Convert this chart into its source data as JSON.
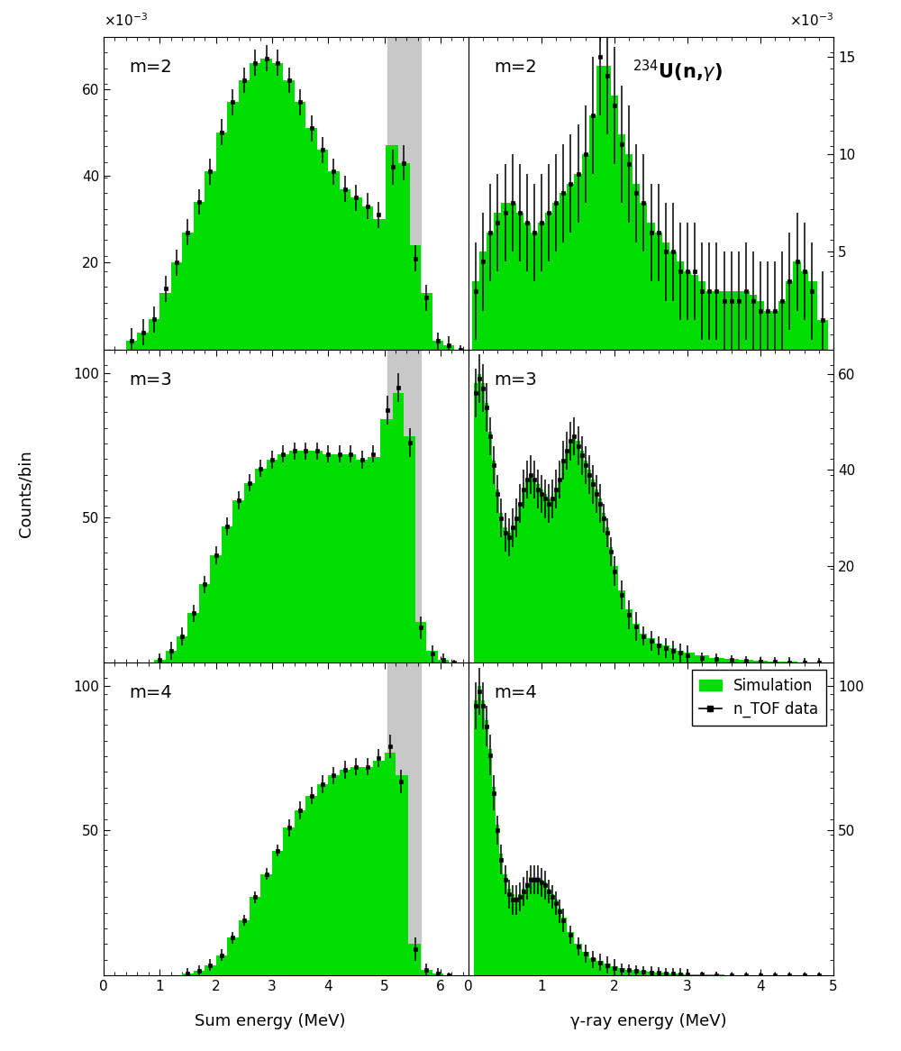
{
  "xlabel_left": "Sum energy (MeV)",
  "xlabel_right": "γ-ray energy (MeV)",
  "ylabel": "Counts/bin",
  "sim_color": "#00dd00",
  "data_color": "#000000",
  "gray_color": "#c8c8c8",
  "bg_color": "#ffffff",
  "panels": [
    {
      "row": 0,
      "col": 0,
      "label": "m=2",
      "side": "left",
      "xlim": [
        0,
        6.5
      ],
      "ylim": [
        0,
        72
      ],
      "yticks": [
        20,
        40,
        60
      ],
      "scale_exp": -3,
      "gray_region": [
        5.05,
        5.65
      ],
      "sim_x": [
        0.5,
        0.7,
        0.9,
        1.1,
        1.3,
        1.5,
        1.7,
        1.9,
        2.1,
        2.3,
        2.5,
        2.7,
        2.9,
        3.1,
        3.3,
        3.5,
        3.7,
        3.9,
        4.1,
        4.3,
        4.5,
        4.7,
        4.9,
        5.15,
        5.35,
        5.55,
        5.75,
        5.95,
        6.15,
        6.35
      ],
      "sim_y": [
        2,
        4,
        7,
        13,
        20,
        27,
        34,
        41,
        50,
        57,
        62,
        66,
        67,
        66,
        62,
        57,
        51,
        46,
        41,
        37,
        35,
        33,
        30,
        47,
        43,
        24,
        13,
        2,
        1,
        0
      ],
      "data_y": [
        2,
        4,
        7,
        14,
        20,
        27,
        34,
        41,
        50,
        57,
        62,
        66,
        67,
        66,
        62,
        57,
        51,
        46,
        41,
        37,
        35,
        33,
        31,
        42,
        43,
        21,
        12,
        2,
        1,
        0
      ],
      "data_err": [
        3,
        3,
        3,
        3,
        3,
        3,
        3,
        3,
        3,
        3,
        3,
        3,
        3,
        3,
        3,
        3,
        3,
        3,
        3,
        3,
        3,
        3,
        3,
        4,
        4,
        3,
        3,
        2,
        2,
        1
      ]
    },
    {
      "row": 0,
      "col": 1,
      "label": "m=2",
      "side": "right",
      "xlim": [
        0,
        5.0
      ],
      "ylim": [
        0,
        16
      ],
      "yticks": [
        5,
        10,
        15
      ],
      "scale_exp": -3,
      "gray_region": null,
      "isotope_label": true,
      "sim_x": [
        0.1,
        0.2,
        0.3,
        0.4,
        0.5,
        0.6,
        0.7,
        0.8,
        0.9,
        1.0,
        1.1,
        1.2,
        1.3,
        1.4,
        1.5,
        1.6,
        1.7,
        1.8,
        1.9,
        2.0,
        2.1,
        2.2,
        2.3,
        2.4,
        2.5,
        2.6,
        2.7,
        2.8,
        2.9,
        3.0,
        3.1,
        3.2,
        3.3,
        3.4,
        3.5,
        3.6,
        3.7,
        3.8,
        3.9,
        4.0,
        4.1,
        4.2,
        4.3,
        4.4,
        4.5,
        4.6,
        4.7,
        4.85
      ],
      "sim_y": [
        3.5,
        5,
        6,
        7,
        7.5,
        7.5,
        7,
        6.5,
        6,
        6.5,
        7,
        7.5,
        8,
        8.5,
        9,
        10,
        12,
        14.5,
        14.5,
        13,
        11,
        10,
        8.5,
        7.5,
        6.5,
        6,
        5.5,
        5,
        4.5,
        4,
        3.8,
        3.5,
        3,
        3,
        3,
        3,
        3,
        3,
        2.8,
        2.5,
        2,
        2,
        2.5,
        3.5,
        4.5,
        4,
        3.5,
        1.5
      ],
      "data_y": [
        3,
        4.5,
        6,
        6.5,
        7,
        7.5,
        7,
        6.5,
        6,
        6.5,
        7,
        7.5,
        8,
        8.5,
        9,
        10,
        12,
        15,
        14,
        12.5,
        10.5,
        9.5,
        8,
        7.5,
        6,
        6,
        5,
        5,
        4,
        4,
        4,
        3,
        3,
        3,
        2.5,
        2.5,
        2.5,
        3,
        2.5,
        2,
        2,
        2,
        2.5,
        3.5,
        4.5,
        4,
        3,
        1.5
      ],
      "data_err": [
        2.5,
        2.5,
        2.5,
        2.5,
        2.5,
        2.5,
        2.5,
        2.5,
        2.5,
        2.5,
        2.5,
        2.5,
        2.5,
        2.5,
        2.5,
        2.5,
        3,
        3,
        3,
        3,
        3,
        3,
        2.5,
        2.5,
        2.5,
        2.5,
        2.5,
        2.5,
        2.5,
        2.5,
        2.5,
        2.5,
        2.5,
        2.5,
        2.5,
        2.5,
        2.5,
        2.5,
        2.5,
        2.5,
        2.5,
        2.5,
        2.5,
        2.5,
        2.5,
        2.5,
        2.5,
        2.5
      ]
    },
    {
      "row": 1,
      "col": 0,
      "label": "m=3",
      "side": "left",
      "xlim": [
        0,
        6.5
      ],
      "ylim": [
        0,
        108
      ],
      "yticks": [
        50,
        100
      ],
      "scale_exp": null,
      "gray_region": [
        5.05,
        5.65
      ],
      "sim_x": [
        1.0,
        1.2,
        1.4,
        1.6,
        1.8,
        2.0,
        2.2,
        2.4,
        2.6,
        2.8,
        3.0,
        3.2,
        3.4,
        3.6,
        3.8,
        4.0,
        4.2,
        4.4,
        4.6,
        4.8,
        5.05,
        5.25,
        5.45,
        5.65,
        5.85,
        6.05,
        6.25
      ],
      "sim_y": [
        1,
        4,
        9,
        17,
        27,
        37,
        47,
        56,
        62,
        67,
        70,
        72,
        73,
        73,
        73,
        72,
        72,
        72,
        70,
        71,
        84,
        93,
        78,
        14,
        4,
        1,
        0
      ],
      "data_y": [
        1,
        4,
        9,
        17,
        27,
        37,
        47,
        56,
        62,
        67,
        70,
        72,
        73,
        73,
        73,
        72,
        72,
        72,
        70,
        72,
        87,
        95,
        76,
        12,
        3,
        1,
        0
      ],
      "data_err": [
        2,
        3,
        3,
        3,
        3,
        3,
        3,
        3,
        3,
        3,
        3,
        3,
        3,
        3,
        3,
        3,
        3,
        3,
        3,
        3,
        5,
        5,
        5,
        4,
        3,
        2,
        1
      ]
    },
    {
      "row": 1,
      "col": 1,
      "label": "m=3",
      "side": "right",
      "xlim": [
        0,
        5.0
      ],
      "ylim": [
        0,
        65
      ],
      "yticks": [
        20,
        40,
        60
      ],
      "scale_exp": null,
      "gray_region": null,
      "sim_x": [
        0.1,
        0.15,
        0.2,
        0.25,
        0.3,
        0.35,
        0.4,
        0.45,
        0.5,
        0.55,
        0.6,
        0.65,
        0.7,
        0.75,
        0.8,
        0.85,
        0.9,
        0.95,
        1.0,
        1.05,
        1.1,
        1.15,
        1.2,
        1.25,
        1.3,
        1.35,
        1.4,
        1.45,
        1.5,
        1.55,
        1.6,
        1.65,
        1.7,
        1.75,
        1.8,
        1.85,
        1.9,
        1.95,
        2.0,
        2.1,
        2.2,
        2.3,
        2.4,
        2.5,
        2.6,
        2.7,
        2.8,
        2.9,
        3.0,
        3.2,
        3.4,
        3.6,
        3.8,
        4.0,
        4.2,
        4.4,
        4.6,
        4.8
      ],
      "sim_y": [
        58,
        60,
        58,
        54,
        48,
        42,
        36,
        31,
        28,
        27,
        28,
        30,
        33,
        36,
        38,
        39,
        38,
        37,
        36,
        35,
        34,
        34,
        36,
        38,
        42,
        44,
        46,
        47,
        46,
        44,
        42,
        40,
        38,
        36,
        34,
        31,
        28,
        24,
        20,
        15,
        11,
        8,
        6,
        5,
        4,
        3.5,
        3,
        2.5,
        2,
        1.5,
        1,
        0.8,
        0.5,
        0.3,
        0.2,
        0.1,
        0.05,
        0.02
      ],
      "data_y": [
        56,
        59,
        57,
        53,
        47,
        41,
        35,
        30,
        27,
        26,
        28,
        30,
        33,
        36,
        38,
        39,
        38,
        36,
        35,
        34,
        33,
        34,
        36,
        38,
        42,
        44,
        46,
        47,
        45,
        43,
        41,
        39,
        37,
        35,
        33,
        30,
        27,
        23,
        19,
        14,
        10,
        7.5,
        5.5,
        4.5,
        3.5,
        3,
        2.5,
        2,
        1.5,
        1,
        0.8,
        0.5,
        0.3,
        0.2,
        0.1,
        0.05,
        0.02,
        0.01
      ],
      "data_err": [
        5,
        5,
        5,
        5,
        4,
        4,
        4,
        4,
        4,
        4,
        4,
        4,
        4,
        4,
        4,
        4,
        4,
        4,
        4,
        4,
        4,
        4,
        4,
        4,
        4,
        4,
        4,
        4,
        4,
        4,
        4,
        4,
        4,
        4,
        4,
        3,
        3,
        3,
        3,
        3,
        3,
        3,
        2,
        2,
        2,
        2,
        2,
        2,
        2,
        1,
        1,
        1,
        1,
        1,
        1,
        1,
        1,
        1
      ]
    },
    {
      "row": 2,
      "col": 0,
      "label": "m=4",
      "side": "left",
      "xlim": [
        0,
        6.5
      ],
      "ylim": [
        0,
        108
      ],
      "yticks": [
        50,
        100
      ],
      "scale_exp": null,
      "gray_region": [
        5.05,
        5.65
      ],
      "sim_x": [
        1.5,
        1.7,
        1.9,
        2.1,
        2.3,
        2.5,
        2.7,
        2.9,
        3.1,
        3.3,
        3.5,
        3.7,
        3.9,
        4.1,
        4.3,
        4.5,
        4.7,
        4.9,
        5.1,
        5.3,
        5.55,
        5.75,
        5.95,
        6.15
      ],
      "sim_y": [
        0.5,
        1.5,
        3.5,
        7,
        13,
        19,
        27,
        35,
        43,
        51,
        57,
        62,
        66,
        69,
        71,
        72,
        72,
        74,
        77,
        69,
        11,
        2,
        0.5,
        0
      ],
      "data_y": [
        0.5,
        1.5,
        3.5,
        7,
        13,
        19,
        27,
        35,
        43,
        51,
        57,
        62,
        66,
        69,
        71,
        72,
        72,
        75,
        79,
        67,
        9,
        2,
        0.5,
        0
      ],
      "data_err": [
        2,
        2,
        2,
        2,
        2,
        2,
        2,
        2,
        2,
        3,
        3,
        3,
        3,
        3,
        3,
        3,
        3,
        3,
        4,
        4,
        4,
        2,
        2,
        1
      ]
    },
    {
      "row": 2,
      "col": 1,
      "label": "m=4",
      "side": "right",
      "xlim": [
        0,
        5.0
      ],
      "ylim": [
        0,
        108
      ],
      "yticks": [
        50,
        100
      ],
      "scale_exp": null,
      "gray_region": null,
      "legend": true,
      "sim_x": [
        0.1,
        0.15,
        0.2,
        0.25,
        0.3,
        0.35,
        0.4,
        0.45,
        0.5,
        0.55,
        0.6,
        0.65,
        0.7,
        0.75,
        0.8,
        0.85,
        0.9,
        0.95,
        1.0,
        1.05,
        1.1,
        1.15,
        1.2,
        1.25,
        1.3,
        1.4,
        1.5,
        1.6,
        1.7,
        1.8,
        1.9,
        2.0,
        2.1,
        2.2,
        2.3,
        2.4,
        2.5,
        2.6,
        2.7,
        2.8,
        2.9,
        3.0,
        3.2,
        3.4,
        3.6,
        3.8,
        4.0,
        4.2,
        4.4,
        4.6,
        4.8
      ],
      "sim_y": [
        95,
        100,
        95,
        88,
        78,
        65,
        52,
        42,
        35,
        30,
        28,
        27,
        28,
        30,
        32,
        34,
        34,
        34,
        33,
        32,
        30,
        28,
        26,
        23,
        20,
        15,
        11,
        8,
        6,
        5,
        4,
        3,
        2.5,
        2,
        1.8,
        1.5,
        1.2,
        1,
        0.8,
        0.6,
        0.5,
        0.4,
        0.3,
        0.2,
        0.15,
        0.1,
        0.08,
        0.05,
        0.03,
        0.02,
        0.01
      ],
      "data_y": [
        93,
        98,
        93,
        86,
        76,
        63,
        50,
        40,
        33,
        28,
        26,
        26,
        27,
        29,
        31,
        33,
        33,
        33,
        32,
        31,
        29,
        27,
        25,
        22,
        19,
        14,
        10,
        7.5,
        5.5,
        4.5,
        3.5,
        2.5,
        2,
        1.8,
        1.5,
        1.2,
        1,
        0.8,
        0.6,
        0.5,
        0.4,
        0.3,
        0.2,
        0.15,
        0.1,
        0.08,
        0.05,
        0.03,
        0.02,
        0.01,
        0
      ],
      "data_err": [
        8,
        8,
        8,
        7,
        7,
        6,
        5,
        5,
        5,
        5,
        5,
        5,
        5,
        5,
        5,
        5,
        5,
        5,
        5,
        5,
        4,
        4,
        4,
        4,
        4,
        3,
        3,
        3,
        3,
        3,
        3,
        3,
        2,
        2,
        2,
        2,
        2,
        2,
        2,
        2,
        2,
        2,
        1,
        1,
        1,
        1,
        1,
        1,
        1,
        1,
        1
      ]
    }
  ]
}
